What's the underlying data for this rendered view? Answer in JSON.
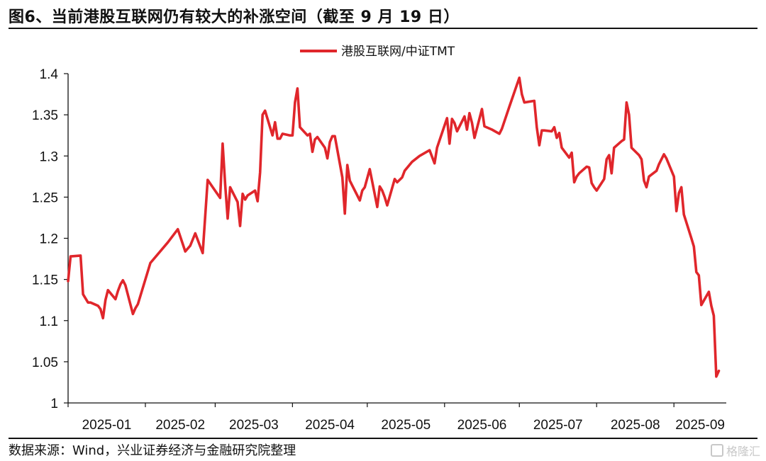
{
  "page": {
    "title": "图6、当前港股互联网仍有较大的补涨空间（截至 9 月 19 日）",
    "source": "数据来源：Wind，兴业证券经济与金融研究院整理",
    "watermark": "格隆汇"
  },
  "colors": {
    "series": "#e0262b",
    "axis": "#111111",
    "text": "#111111"
  },
  "chart_data": {
    "type": "line",
    "title": "",
    "xlabel": "",
    "ylabel": "",
    "ylim": [
      1,
      1.4
    ],
    "yticks": [
      1,
      1.05,
      1.1,
      1.15,
      1.2,
      1.25,
      1.3,
      1.35,
      1.4
    ],
    "ytick_labels": [
      "1",
      "1.05",
      "1.1",
      "1.15",
      "1.2",
      "1.25",
      "1.3",
      "1.35",
      "1.4"
    ],
    "xtick_labels": [
      "2025-01",
      "2025-02",
      "2025-03",
      "2025-04",
      "2025-05",
      "2025-06",
      "2025-07",
      "2025-08",
      "2025-09"
    ],
    "xlim": [
      "2025-01-01",
      "2025-09-22"
    ],
    "grid": false,
    "legend_position": "top-center",
    "series": [
      {
        "name": "港股互联网/中证TMT",
        "points": [
          [
            "2025-01-01",
            1.148
          ],
          [
            "2025-01-02",
            1.178
          ],
          [
            "2025-01-06",
            1.179
          ],
          [
            "2025-01-07",
            1.132
          ],
          [
            "2025-01-09",
            1.122
          ],
          [
            "2025-01-10",
            1.122
          ],
          [
            "2025-01-13",
            1.118
          ],
          [
            "2025-01-14",
            1.114
          ],
          [
            "2025-01-15",
            1.103
          ],
          [
            "2025-01-16",
            1.125
          ],
          [
            "2025-01-17",
            1.137
          ],
          [
            "2025-01-20",
            1.126
          ],
          [
            "2025-01-21",
            1.136
          ],
          [
            "2025-01-22",
            1.144
          ],
          [
            "2025-01-23",
            1.149
          ],
          [
            "2025-01-24",
            1.143
          ],
          [
            "2025-01-27",
            1.108
          ],
          [
            "2025-01-28",
            1.115
          ],
          [
            "2025-01-29",
            1.12
          ],
          [
            "2025-02-03",
            1.17
          ],
          [
            "2025-02-10",
            1.195
          ],
          [
            "2025-02-14",
            1.211
          ],
          [
            "2025-02-17",
            1.184
          ],
          [
            "2025-02-19",
            1.191
          ],
          [
            "2025-02-21",
            1.206
          ],
          [
            "2025-02-24",
            1.182
          ],
          [
            "2025-02-26",
            1.271
          ],
          [
            "2025-02-28",
            1.262
          ],
          [
            "2025-03-03",
            1.249
          ],
          [
            "2025-03-04",
            1.315
          ],
          [
            "2025-03-05",
            1.265
          ],
          [
            "2025-03-06",
            1.224
          ],
          [
            "2025-03-07",
            1.262
          ],
          [
            "2025-03-10",
            1.244
          ],
          [
            "2025-03-11",
            1.215
          ],
          [
            "2025-03-12",
            1.254
          ],
          [
            "2025-03-13",
            1.247
          ],
          [
            "2025-03-14",
            1.252
          ],
          [
            "2025-03-17",
            1.258
          ],
          [
            "2025-03-18",
            1.245
          ],
          [
            "2025-03-19",
            1.28
          ],
          [
            "2025-03-20",
            1.35
          ],
          [
            "2025-03-21",
            1.355
          ],
          [
            "2025-03-24",
            1.325
          ],
          [
            "2025-03-25",
            1.341
          ],
          [
            "2025-03-26",
            1.321
          ],
          [
            "2025-03-27",
            1.321
          ],
          [
            "2025-03-28",
            1.327
          ],
          [
            "2025-03-31",
            1.325
          ],
          [
            "2025-04-01",
            1.325
          ],
          [
            "2025-04-02",
            1.365
          ],
          [
            "2025-04-03",
            1.382
          ],
          [
            "2025-04-04",
            1.335
          ],
          [
            "2025-04-07",
            1.325
          ],
          [
            "2025-04-08",
            1.327
          ],
          [
            "2025-04-09",
            1.305
          ],
          [
            "2025-04-10",
            1.32
          ],
          [
            "2025-04-11",
            1.323
          ],
          [
            "2025-04-14",
            1.31
          ],
          [
            "2025-04-15",
            1.297
          ],
          [
            "2025-04-16",
            1.317
          ],
          [
            "2025-04-17",
            1.324
          ],
          [
            "2025-04-18",
            1.324
          ],
          [
            "2025-04-21",
            1.274
          ],
          [
            "2025-04-22",
            1.23
          ],
          [
            "2025-04-23",
            1.289
          ],
          [
            "2025-04-24",
            1.27
          ],
          [
            "2025-04-25",
            1.264
          ],
          [
            "2025-04-28",
            1.246
          ],
          [
            "2025-04-29",
            1.258
          ],
          [
            "2025-04-30",
            1.262
          ],
          [
            "2025-05-02",
            1.284
          ],
          [
            "2025-05-05",
            1.238
          ],
          [
            "2025-05-06",
            1.263
          ],
          [
            "2025-05-07",
            1.258
          ],
          [
            "2025-05-08",
            1.25
          ],
          [
            "2025-05-09",
            1.24
          ],
          [
            "2025-05-12",
            1.272
          ],
          [
            "2025-05-13",
            1.268
          ],
          [
            "2025-05-15",
            1.274
          ],
          [
            "2025-05-16",
            1.282
          ],
          [
            "2025-05-19",
            1.293
          ],
          [
            "2025-05-22",
            1.3
          ],
          [
            "2025-05-26",
            1.307
          ],
          [
            "2025-05-28",
            1.291
          ],
          [
            "2025-05-29",
            1.31
          ],
          [
            "2025-06-02",
            1.346
          ],
          [
            "2025-06-03",
            1.315
          ],
          [
            "2025-06-04",
            1.345
          ],
          [
            "2025-06-05",
            1.34
          ],
          [
            "2025-06-06",
            1.33
          ],
          [
            "2025-06-09",
            1.348
          ],
          [
            "2025-06-10",
            1.332
          ],
          [
            "2025-06-11",
            1.352
          ],
          [
            "2025-06-12",
            1.34
          ],
          [
            "2025-06-13",
            1.322
          ],
          [
            "2025-06-16",
            1.357
          ],
          [
            "2025-06-17",
            1.336
          ],
          [
            "2025-06-20",
            1.332
          ],
          [
            "2025-06-23",
            1.327
          ],
          [
            "2025-06-24",
            1.333
          ],
          [
            "2025-06-27",
            1.36
          ],
          [
            "2025-07-01",
            1.395
          ],
          [
            "2025-07-02",
            1.375
          ],
          [
            "2025-07-03",
            1.365
          ],
          [
            "2025-07-07",
            1.367
          ],
          [
            "2025-07-08",
            1.335
          ],
          [
            "2025-07-09",
            1.313
          ],
          [
            "2025-07-10",
            1.331
          ],
          [
            "2025-07-11",
            1.331
          ],
          [
            "2025-07-14",
            1.33
          ],
          [
            "2025-07-15",
            1.335
          ],
          [
            "2025-07-16",
            1.322
          ],
          [
            "2025-07-17",
            1.328
          ],
          [
            "2025-07-18",
            1.31
          ],
          [
            "2025-07-21",
            1.298
          ],
          [
            "2025-07-22",
            1.304
          ],
          [
            "2025-07-23",
            1.268
          ],
          [
            "2025-07-24",
            1.275
          ],
          [
            "2025-07-25",
            1.279
          ],
          [
            "2025-07-28",
            1.287
          ],
          [
            "2025-07-29",
            1.286
          ],
          [
            "2025-07-30",
            1.267
          ],
          [
            "2025-07-31",
            1.262
          ],
          [
            "2025-08-01",
            1.258
          ],
          [
            "2025-08-04",
            1.272
          ],
          [
            "2025-08-05",
            1.296
          ],
          [
            "2025-08-06",
            1.301
          ],
          [
            "2025-08-07",
            1.279
          ],
          [
            "2025-08-08",
            1.31
          ],
          [
            "2025-08-11",
            1.318
          ],
          [
            "2025-08-12",
            1.32
          ],
          [
            "2025-08-13",
            1.365
          ],
          [
            "2025-08-14",
            1.35
          ],
          [
            "2025-08-15",
            1.31
          ],
          [
            "2025-08-18",
            1.301
          ],
          [
            "2025-08-19",
            1.296
          ],
          [
            "2025-08-20",
            1.27
          ],
          [
            "2025-08-21",
            1.262
          ],
          [
            "2025-08-22",
            1.275
          ],
          [
            "2025-08-25",
            1.282
          ],
          [
            "2025-08-26",
            1.29
          ],
          [
            "2025-08-27",
            1.296
          ],
          [
            "2025-08-28",
            1.302
          ],
          [
            "2025-08-29",
            1.297
          ],
          [
            "2025-09-01",
            1.275
          ],
          [
            "2025-09-02",
            1.233
          ],
          [
            "2025-09-03",
            1.255
          ],
          [
            "2025-09-04",
            1.262
          ],
          [
            "2025-09-05",
            1.229
          ],
          [
            "2025-09-08",
            1.2
          ],
          [
            "2025-09-09",
            1.19
          ],
          [
            "2025-09-10",
            1.159
          ],
          [
            "2025-09-11",
            1.155
          ],
          [
            "2025-09-12",
            1.119
          ],
          [
            "2025-09-15",
            1.135
          ],
          [
            "2025-09-16",
            1.118
          ],
          [
            "2025-09-17",
            1.106
          ],
          [
            "2025-09-18",
            1.032
          ],
          [
            "2025-09-19",
            1.039
          ]
        ]
      }
    ]
  }
}
